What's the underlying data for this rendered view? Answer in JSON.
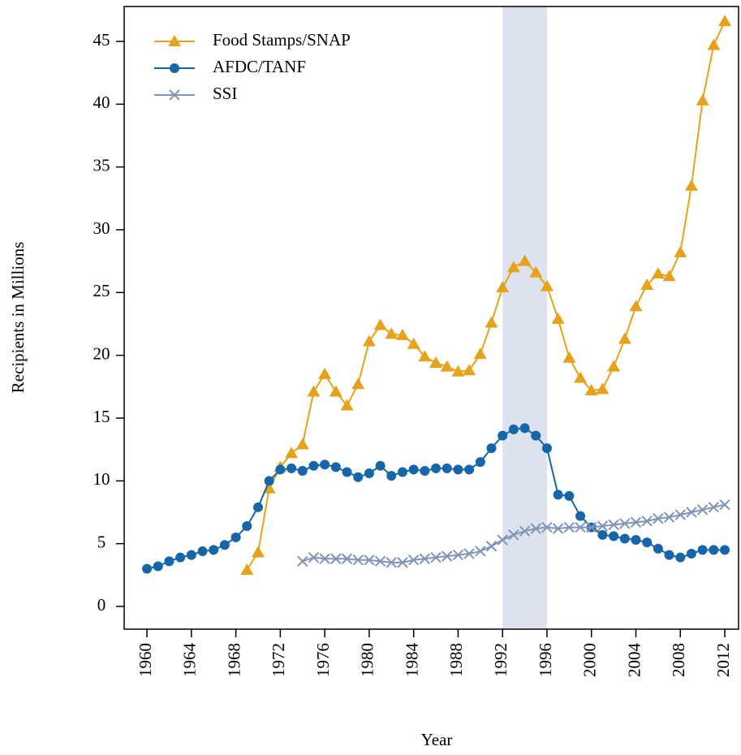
{
  "chart_data": {
    "type": "line",
    "xlabel": "Year",
    "ylabel": "Recipients in Millions",
    "x": [
      1960,
      1961,
      1962,
      1963,
      1964,
      1965,
      1966,
      1967,
      1968,
      1969,
      1970,
      1971,
      1972,
      1973,
      1974,
      1975,
      1976,
      1977,
      1978,
      1979,
      1980,
      1981,
      1982,
      1983,
      1984,
      1985,
      1986,
      1987,
      1988,
      1989,
      1990,
      1991,
      1992,
      1993,
      1994,
      1995,
      1996,
      1997,
      1998,
      1999,
      2000,
      2001,
      2002,
      2003,
      2004,
      2005,
      2006,
      2007,
      2008,
      2009,
      2010,
      2011,
      2012
    ],
    "series": [
      {
        "name": "Food Stamps/SNAP",
        "color": "#E6A21A",
        "marker": "triangle",
        "values": [
          null,
          null,
          null,
          null,
          null,
          null,
          null,
          null,
          null,
          2.9,
          4.3,
          9.4,
          11.1,
          12.2,
          12.9,
          17.1,
          18.5,
          17.1,
          16.0,
          17.7,
          21.1,
          22.4,
          21.7,
          21.6,
          20.9,
          19.9,
          19.4,
          19.1,
          18.7,
          18.8,
          20.1,
          22.6,
          25.4,
          27.0,
          27.5,
          26.6,
          25.5,
          22.9,
          19.8,
          18.2,
          17.2,
          17.3,
          19.1,
          21.3,
          23.9,
          25.6,
          26.5,
          26.3,
          28.2,
          33.5,
          40.3,
          44.7,
          46.6
        ]
      },
      {
        "name": "AFDC/TANF",
        "color": "#1565A8",
        "marker": "circle",
        "values": [
          3.0,
          3.2,
          3.6,
          3.9,
          4.1,
          4.4,
          4.5,
          4.9,
          5.5,
          6.4,
          7.9,
          10.0,
          10.9,
          11.0,
          10.8,
          11.2,
          11.3,
          11.1,
          10.7,
          10.3,
          10.6,
          11.2,
          10.4,
          10.7,
          10.9,
          10.8,
          11.0,
          11.0,
          10.9,
          10.9,
          11.5,
          12.6,
          13.6,
          14.1,
          14.2,
          13.6,
          12.6,
          8.9,
          8.8,
          7.2,
          6.3,
          5.7,
          5.6,
          5.4,
          5.3,
          5.1,
          4.6,
          4.1,
          3.9,
          4.2,
          4.5,
          4.5,
          4.5
        ]
      },
      {
        "name": "SSI",
        "color": "#7F94B8",
        "marker": "cross",
        "values": [
          null,
          null,
          null,
          null,
          null,
          null,
          null,
          null,
          null,
          null,
          null,
          null,
          null,
          null,
          3.6,
          3.9,
          3.8,
          3.8,
          3.8,
          3.7,
          3.7,
          3.6,
          3.5,
          3.5,
          3.7,
          3.8,
          3.9,
          4.0,
          4.1,
          4.2,
          4.4,
          4.8,
          5.3,
          5.7,
          6.0,
          6.2,
          6.3,
          6.2,
          6.3,
          6.3,
          6.3,
          6.4,
          6.5,
          6.6,
          6.7,
          6.8,
          7.0,
          7.1,
          7.3,
          7.5,
          7.7,
          7.9,
          8.1
        ]
      }
    ],
    "shade": {
      "x": [
        1992,
        1996
      ],
      "color": "#DDE3EE"
    },
    "xlim": [
      1957.95,
      2013.24
    ],
    "ylim": [
      -1.81,
      47.78
    ],
    "xticks": [
      1960,
      1964,
      1968,
      1972,
      1976,
      1980,
      1984,
      1988,
      1992,
      1996,
      2000,
      2004,
      2008,
      2012
    ],
    "yticks": [
      0,
      5,
      10,
      15,
      20,
      25,
      30,
      35,
      40,
      45
    ],
    "legend": "top-left"
  }
}
